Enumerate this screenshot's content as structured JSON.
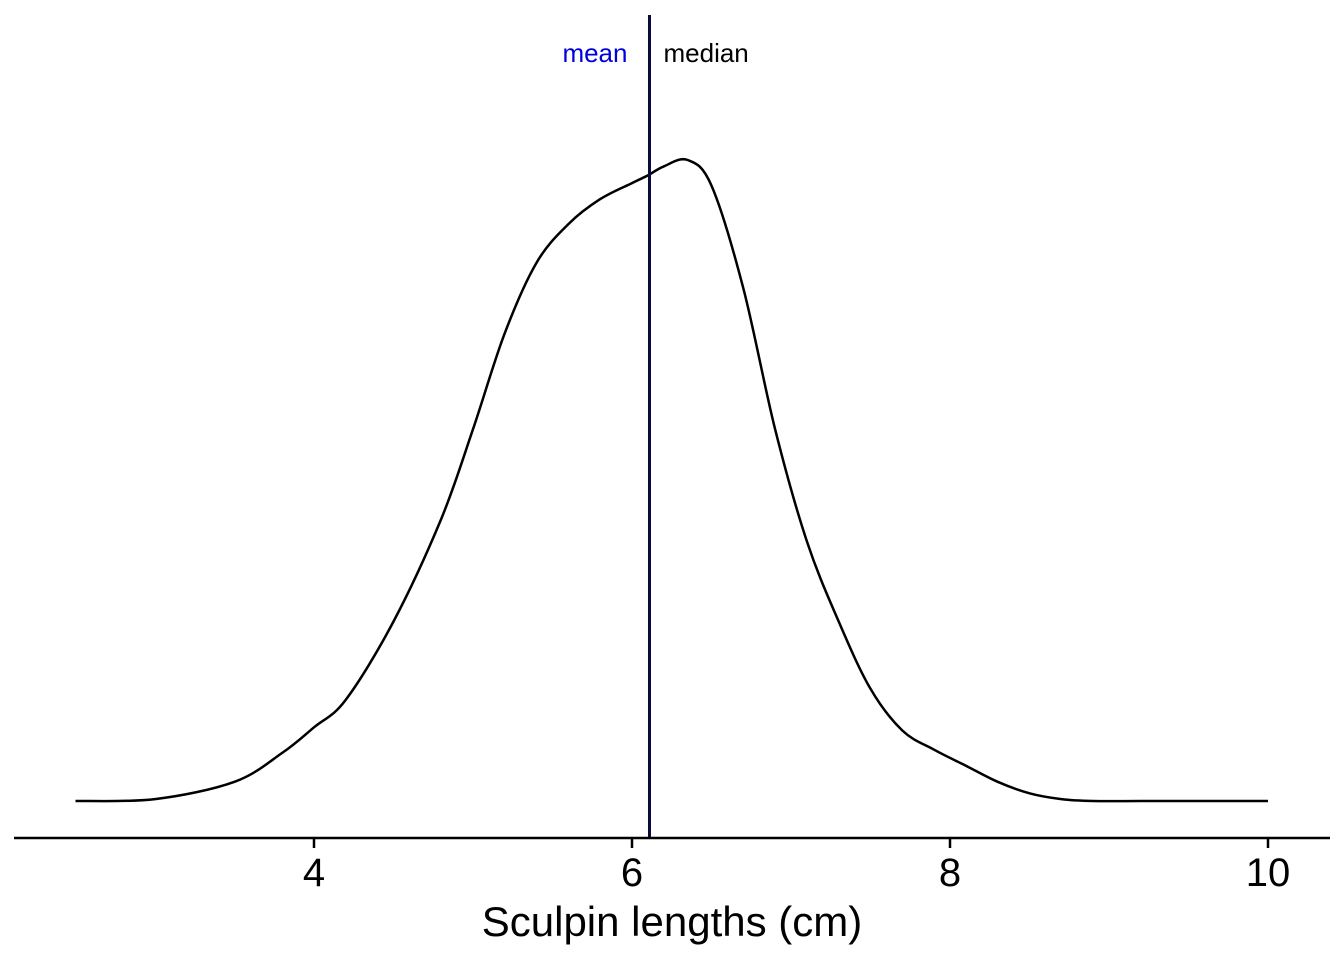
{
  "chart_data": {
    "type": "area",
    "title": "",
    "xlabel": "Sculpin lengths (cm)",
    "ylabel": "",
    "xlim": [
      2.1,
      10.4
    ],
    "ylim": [
      0,
      1
    ],
    "x_ticks": [
      4,
      6,
      8,
      10
    ],
    "x_tick_labels": [
      "4",
      "6",
      "8",
      "10"
    ],
    "grid": false,
    "legend": "none",
    "series": [
      {
        "x": [
          2.5,
          3.0,
          3.5,
          3.8,
          4.0,
          4.2,
          4.5,
          4.8,
          5.0,
          5.2,
          5.4,
          5.6,
          5.8,
          6.0,
          6.1,
          6.2,
          6.35,
          6.5,
          6.7,
          6.9,
          7.1,
          7.3,
          7.5,
          7.7,
          7.9,
          8.1,
          8.3,
          8.5,
          8.7,
          8.9,
          9.2,
          9.5,
          10.0
        ],
        "y": [
          0.0,
          0.003,
          0.03,
          0.075,
          0.115,
          0.158,
          0.28,
          0.44,
          0.58,
          0.73,
          0.84,
          0.9,
          0.939,
          0.964,
          0.976,
          0.99,
          1.0,
          0.96,
          0.8,
          0.58,
          0.405,
          0.28,
          0.175,
          0.11,
          0.08,
          0.055,
          0.03,
          0.012,
          0.003,
          0.0,
          0.0,
          0.0,
          0.0
        ],
        "color": "#000000"
      }
    ],
    "markers": [
      {
        "name": "mean",
        "x": 6.11,
        "color": "#0000dd",
        "side": "left"
      },
      {
        "name": "median",
        "x": 6.11,
        "color": "#000000",
        "side": "right"
      }
    ],
    "marker_line_color": "#0a0a3a"
  }
}
